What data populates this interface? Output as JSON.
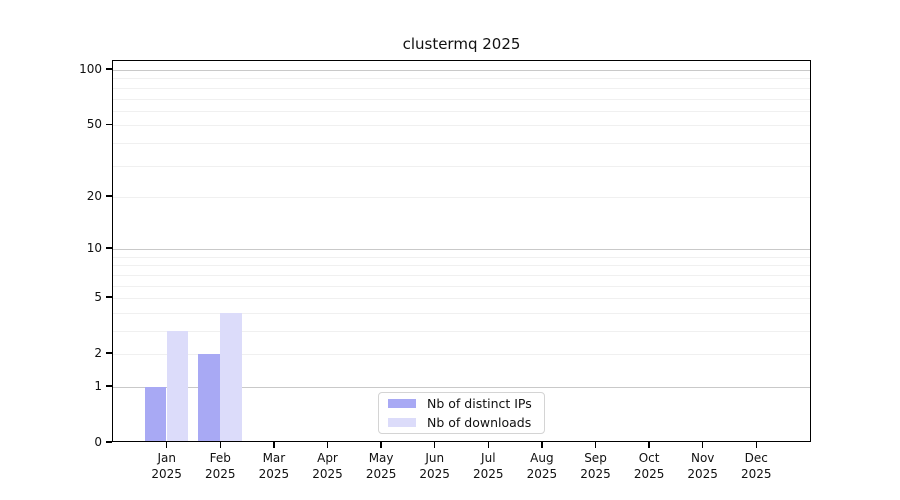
{
  "chart_data": {
    "type": "bar",
    "title": "clustermq 2025",
    "categories": [
      "Jan 2025",
      "Feb 2025",
      "Mar 2025",
      "Apr 2025",
      "May 2025",
      "Jun 2025",
      "Jul 2025",
      "Aug 2025",
      "Sep 2025",
      "Oct 2025",
      "Nov 2025",
      "Dec 2025"
    ],
    "series": [
      {
        "name": "Nb of distinct IPs",
        "color": "#a8a9f4",
        "values": [
          1,
          2,
          0,
          0,
          0,
          0,
          0,
          0,
          0,
          0,
          0,
          0
        ]
      },
      {
        "name": "Nb of downloads",
        "color": "#dcdcfa",
        "values": [
          3,
          4,
          0,
          0,
          0,
          0,
          0,
          0,
          0,
          0,
          0,
          0
        ]
      }
    ],
    "xlabel": "",
    "ylabel": "",
    "yscale": "log1p",
    "ylim": [
      0,
      112
    ],
    "y_ticks": [
      100,
      50,
      20,
      10,
      5,
      2,
      1,
      0
    ],
    "grid": {
      "major_values": [
        1,
        10,
        100
      ],
      "minor_values": [
        2,
        3,
        4,
        5,
        6,
        7,
        8,
        9,
        20,
        30,
        40,
        50,
        60,
        70,
        80,
        90
      ],
      "major_color": "#c9c9c9",
      "minor_color": "#f0f0f0"
    },
    "legend_position": "lower center inside"
  }
}
